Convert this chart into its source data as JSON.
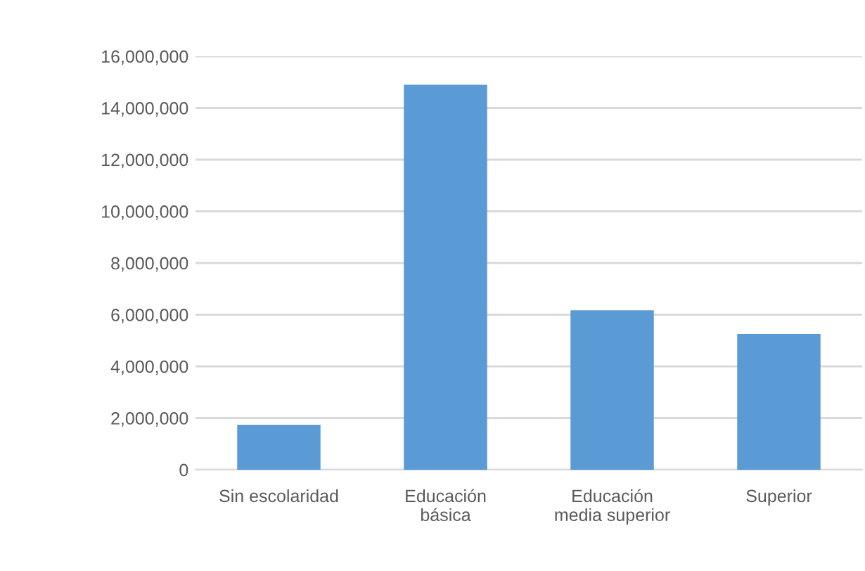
{
  "chart_data": {
    "type": "bar",
    "categories": [
      "Sin escolaridad",
      "Educación\nbásica",
      "Educación\nmedia superior",
      "Superior"
    ],
    "values": [
      1740000,
      14900000,
      6170000,
      5250000
    ],
    "color": "#5b9bd5",
    "ylim": [
      0,
      16000000
    ],
    "yticks": [
      {
        "value": 0,
        "label": "0"
      },
      {
        "value": 2000000,
        "label": "2,000,000"
      },
      {
        "value": 4000000,
        "label": "4,000,000"
      },
      {
        "value": 6000000,
        "label": "6,000,000"
      },
      {
        "value": 8000000,
        "label": "8,000,000"
      },
      {
        "value": 10000000,
        "label": "10,000,000"
      },
      {
        "value": 12000000,
        "label": "12,000,000"
      },
      {
        "value": 14000000,
        "label": "14,000,000"
      },
      {
        "value": 16000000,
        "label": "16,000,000"
      }
    ],
    "grid": "y"
  }
}
